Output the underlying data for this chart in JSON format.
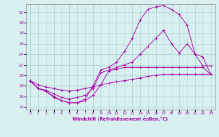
{
  "xlabel": "Windchill (Refroidissement éolien,°C)",
  "bg_color": "#d8f0f0",
  "grid_color": "#aacece",
  "line_color": "#aa00aa",
  "xlim": [
    -0.5,
    23.5
  ],
  "ylim": [
    13.5,
    33.5
  ],
  "yticks": [
    14,
    16,
    18,
    20,
    22,
    24,
    26,
    28,
    30,
    32
  ],
  "xticks": [
    0,
    1,
    2,
    3,
    4,
    5,
    6,
    7,
    8,
    9,
    10,
    11,
    12,
    13,
    14,
    15,
    16,
    17,
    18,
    19,
    20,
    21,
    22,
    23
  ],
  "series": [
    {
      "x": [
        0,
        1,
        2,
        3,
        4,
        5,
        6,
        7,
        8,
        9,
        10,
        11,
        12,
        13,
        14,
        15,
        16,
        17,
        18,
        19,
        20,
        21,
        22,
        23
      ],
      "y": [
        19.0,
        17.5,
        17.0,
        16.0,
        15.2,
        14.8,
        14.8,
        15.5,
        18.0,
        21.0,
        21.5,
        22.5,
        24.5,
        27.0,
        30.5,
        32.5,
        33.0,
        33.2,
        32.5,
        31.5,
        29.5,
        24.0,
        21.8,
        21.8
      ]
    },
    {
      "x": [
        0,
        1,
        2,
        3,
        4,
        5,
        6,
        7,
        8,
        9,
        10,
        11,
        12,
        13,
        14,
        15,
        16,
        17,
        18,
        19,
        20,
        21,
        22,
        23
      ],
      "y": [
        19.0,
        17.5,
        17.2,
        16.5,
        15.8,
        15.5,
        15.8,
        16.2,
        17.5,
        20.5,
        21.0,
        21.5,
        22.0,
        22.5,
        24.0,
        25.5,
        27.0,
        28.5,
        26.0,
        24.2,
        26.0,
        24.0,
        23.5,
        20.2
      ]
    },
    {
      "x": [
        0,
        1,
        2,
        3,
        4,
        5,
        6,
        7,
        8,
        9,
        10,
        11,
        12,
        13,
        14,
        15,
        16,
        17,
        18,
        19,
        20,
        21,
        22,
        23
      ],
      "y": [
        19.0,
        18.2,
        17.8,
        17.5,
        17.2,
        17.0,
        17.2,
        17.5,
        17.8,
        18.2,
        18.5,
        18.8,
        19.0,
        19.2,
        19.5,
        19.8,
        20.0,
        20.2,
        20.2,
        20.2,
        20.2,
        20.2,
        20.2,
        20.2
      ]
    },
    {
      "x": [
        0,
        1,
        2,
        3,
        4,
        5,
        6,
        7,
        8,
        9,
        10,
        11,
        12,
        13,
        14,
        15,
        16,
        17,
        18,
        19,
        20,
        21,
        22,
        23
      ],
      "y": [
        19.0,
        17.5,
        17.0,
        15.8,
        15.2,
        14.8,
        14.8,
        15.2,
        16.2,
        18.2,
        20.8,
        21.2,
        21.5,
        21.5,
        21.5,
        21.5,
        21.5,
        21.5,
        21.5,
        21.5,
        21.5,
        21.5,
        21.5,
        20.2
      ]
    }
  ]
}
